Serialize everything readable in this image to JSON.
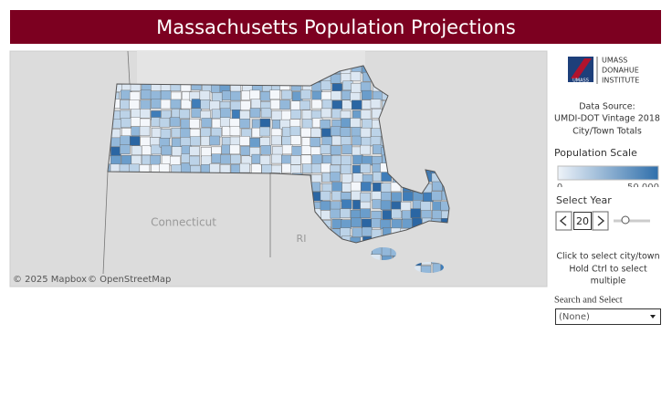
{
  "header": {
    "title": "Massachusetts Population Projections"
  },
  "map": {
    "labels": [
      "Connecticut",
      "RI"
    ],
    "attribution": [
      "© 2025 Mapbox",
      "© OpenStreetMap"
    ]
  },
  "sidebar": {
    "logo": {
      "badge": "UMASS",
      "lines": [
        "UMASS",
        "DONAHUE",
        "INSTITUTE"
      ]
    },
    "data_source": [
      "Data Source:",
      "UMDI-DOT Vintage 2018",
      "City/Town Totals"
    ],
    "scale": {
      "title": "Population Scale",
      "min": "0",
      "max": "50,000"
    },
    "year": {
      "title": "Select Year",
      "value": "20"
    },
    "instructions": [
      "Click to select city/town",
      "Hold Ctrl to select",
      "multiple"
    ],
    "search": {
      "title": "Search and Select",
      "value": "(None)"
    }
  }
}
